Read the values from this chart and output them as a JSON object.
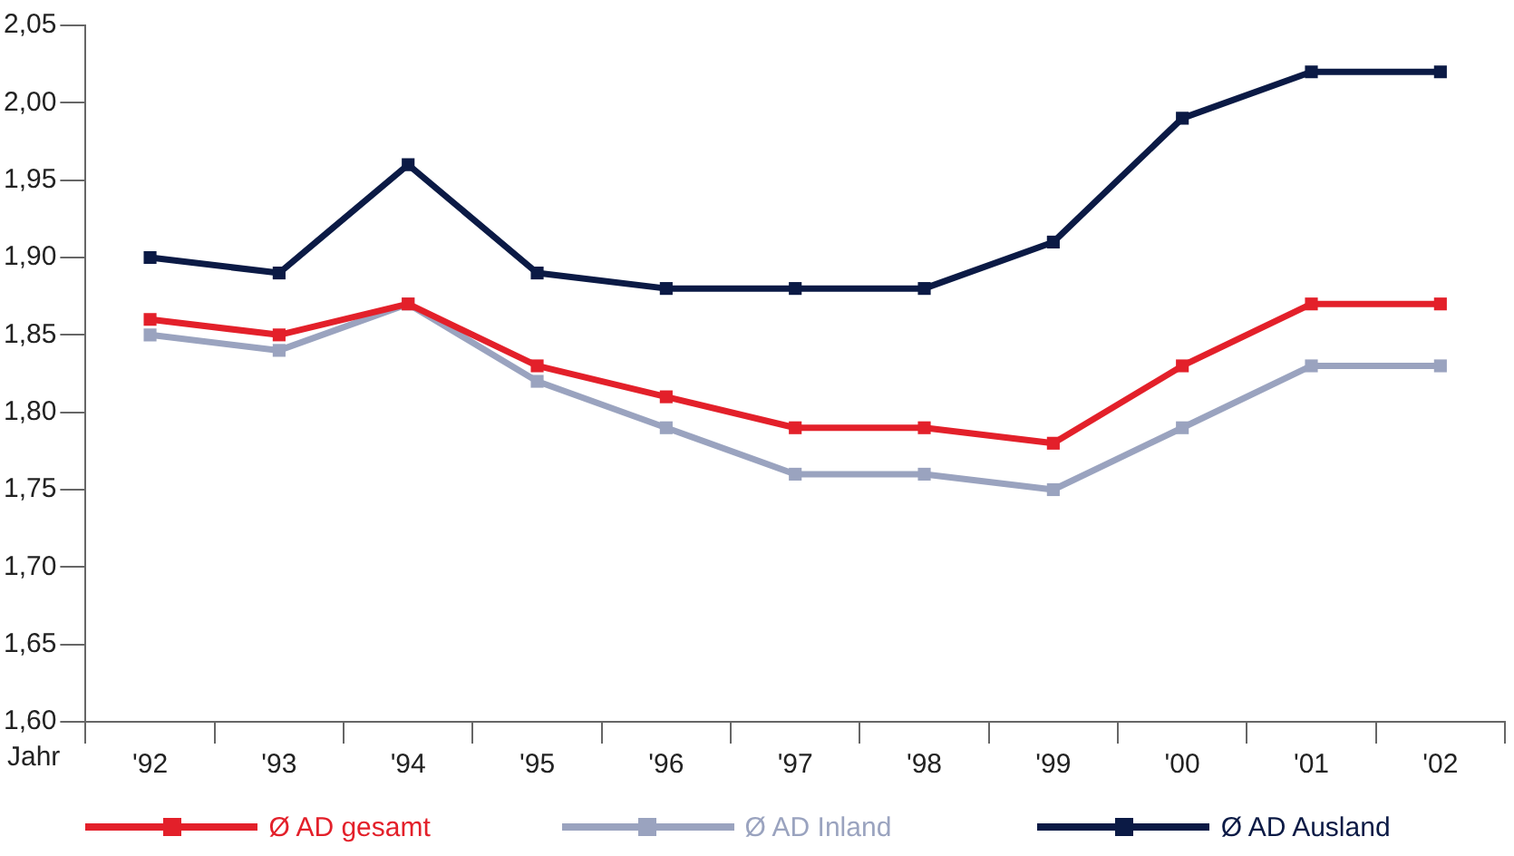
{
  "chart_data": {
    "type": "line",
    "xlabel": "Jahr",
    "categories": [
      "'92",
      "'93",
      "'94",
      "'95",
      "'96",
      "'97",
      "'98",
      "'99",
      "'00",
      "'01",
      "'02"
    ],
    "series": [
      {
        "name": "Ø AD gesamt",
        "color": "#e3202a",
        "values": [
          1.86,
          1.85,
          1.87,
          1.83,
          1.81,
          1.79,
          1.79,
          1.78,
          1.83,
          1.87,
          1.87
        ]
      },
      {
        "name": "Ø AD Inland",
        "color": "#9aa3bf",
        "values": [
          1.85,
          1.84,
          1.87,
          1.82,
          1.79,
          1.76,
          1.76,
          1.75,
          1.79,
          1.83,
          1.83
        ]
      },
      {
        "name": "Ø AD Ausland",
        "color": "#0b1a45",
        "values": [
          1.9,
          1.89,
          1.96,
          1.89,
          1.88,
          1.88,
          1.88,
          1.91,
          1.99,
          2.02,
          2.02
        ]
      }
    ],
    "ylim": [
      1.6,
      2.05
    ],
    "yticks": [
      {
        "value": 1.6,
        "label": "1,60"
      },
      {
        "value": 1.65,
        "label": "1,65"
      },
      {
        "value": 1.7,
        "label": "1,70"
      },
      {
        "value": 1.75,
        "label": "1,75"
      },
      {
        "value": 1.8,
        "label": "1,80"
      },
      {
        "value": 1.85,
        "label": "1,85"
      },
      {
        "value": 1.9,
        "label": "1,90"
      },
      {
        "value": 1.95,
        "label": "1,95"
      },
      {
        "value": 2.0,
        "label": "2,00"
      },
      {
        "value": 2.05,
        "label": "2,05"
      }
    ],
    "grid": false,
    "legend": "bottom",
    "marker": "square",
    "line_style": "solid"
  }
}
